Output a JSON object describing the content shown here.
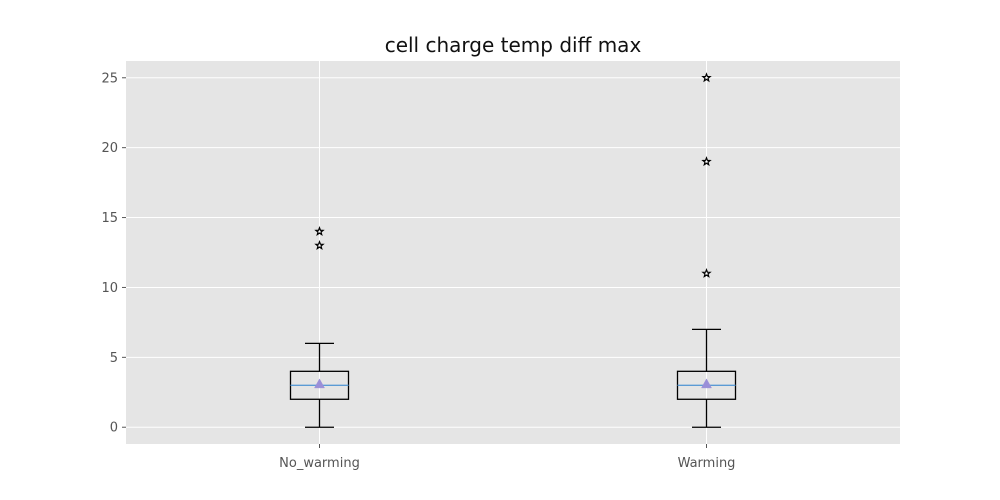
{
  "chart_data": {
    "type": "box",
    "title": "cell charge temp diff max",
    "xlabel": "",
    "ylabel": "",
    "ylim": [
      -1.2,
      26.2
    ],
    "yticks": [
      0,
      5,
      10,
      15,
      20,
      25
    ],
    "grid": true,
    "legend": "none",
    "categories": [
      "No_warming",
      "Warming"
    ],
    "boxes": [
      {
        "category": "No_warming",
        "whisker_low": 0,
        "q1": 2,
        "median": 3,
        "q3": 4,
        "whisker_high": 6,
        "mean": 3.1,
        "outliers": [
          13,
          14
        ]
      },
      {
        "category": "Warming",
        "whisker_low": 0,
        "q1": 2,
        "median": 3,
        "q3": 4,
        "whisker_high": 7,
        "mean": 3.1,
        "outliers": [
          11,
          19,
          25
        ]
      }
    ],
    "colors": {
      "plot_background": "#e5e5e5",
      "grid": "#ffffff",
      "box_edge": "#000000",
      "median": "#5b9bd5",
      "mean_marker": "#9a8fd8",
      "outlier_edge": "#000000"
    }
  }
}
